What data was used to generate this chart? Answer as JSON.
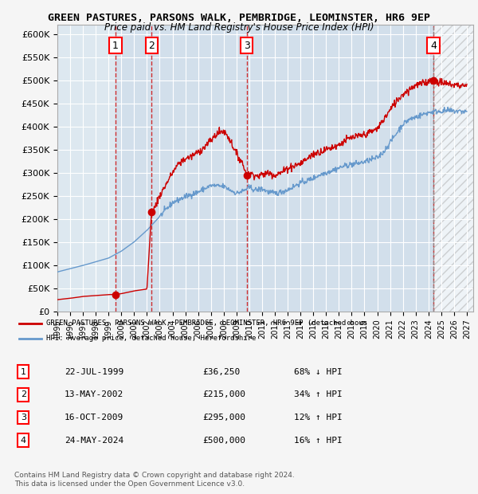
{
  "title": "GREEN PASTURES, PARSONS WALK, PEMBRIDGE, LEOMINSTER, HR6 9EP",
  "subtitle": "Price paid vs. HM Land Registry's House Price Index (HPI)",
  "bg_color": "#dde8f0",
  "plot_bg_color": "#dde8f0",
  "grid_color": "#ffffff",
  "ylim": [
    0,
    620000
  ],
  "yticks": [
    0,
    50000,
    100000,
    150000,
    200000,
    250000,
    300000,
    350000,
    400000,
    450000,
    500000,
    550000,
    600000
  ],
  "xlim_start": 1995.0,
  "xlim_end": 2027.5,
  "transactions": [
    {
      "num": 1,
      "date": "22-JUL-1999",
      "year": 1999.55,
      "price": 36250,
      "pct": "68%",
      "dir": "↓"
    },
    {
      "num": 2,
      "date": "13-MAY-2002",
      "year": 2002.36,
      "price": 215000,
      "pct": "34%",
      "dir": "↑"
    },
    {
      "num": 3,
      "date": "16-OCT-2009",
      "year": 2009.79,
      "price": 295000,
      "pct": "12%",
      "dir": "↑"
    },
    {
      "num": 4,
      "date": "24-MAY-2024",
      "year": 2024.39,
      "price": 500000,
      "pct": "16%",
      "dir": "↑"
    }
  ],
  "legend_line1": "GREEN PASTURES, PARSONS WALK, PEMBRIDGE, LEOMINSTER, HR6 9EP (detached hous",
  "legend_line2": "HPI: Average price, detached house, Herefordshire",
  "footer1": "Contains HM Land Registry data © Crown copyright and database right 2024.",
  "footer2": "This data is licensed under the Open Government Licence v3.0.",
  "red_color": "#cc0000",
  "blue_color": "#6699cc",
  "hatch_start": 2024.39,
  "hatch_end": 2027.5
}
